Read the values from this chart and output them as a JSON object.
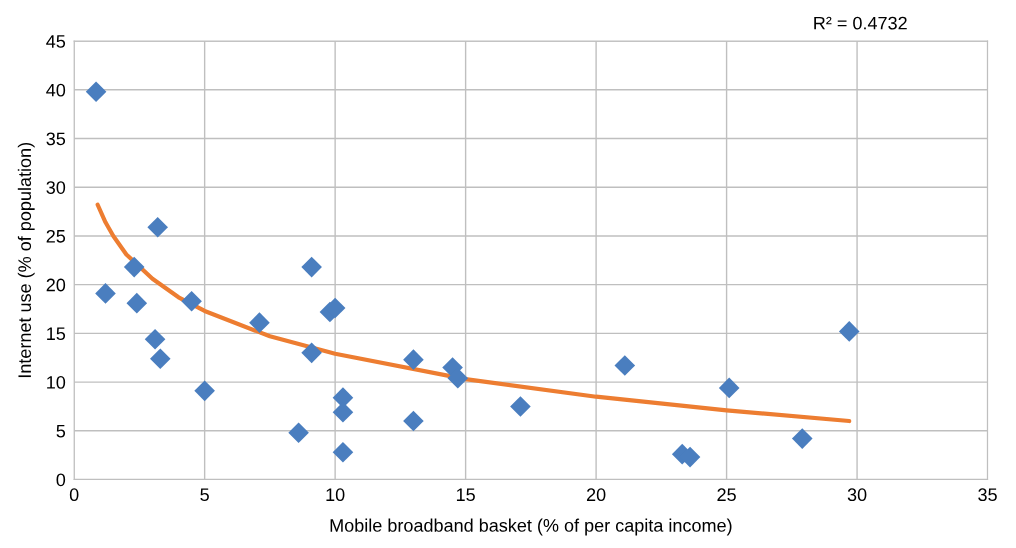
{
  "chart_data": {
    "type": "scatter",
    "xlabel": "Mobile broadband basket (% of per capita income)",
    "ylabel": "Internet use (% of population)",
    "annotations": [
      "R² = 0.4732"
    ],
    "xlim": [
      0,
      35
    ],
    "xticks": [
      0,
      5,
      10,
      15,
      20,
      25,
      30,
      35
    ],
    "ylim": [
      0,
      45
    ],
    "yticks": [
      0,
      5,
      10,
      15,
      20,
      25,
      30,
      35,
      40,
      45
    ],
    "grid": true,
    "marker": "diamond",
    "series": [
      {
        "color": "#4a7ebf",
        "x": [
          0.84,
          1.2,
          2.3,
          2.4,
          3.2,
          3.1,
          3.3,
          4.5,
          5.0,
          7.1,
          8.6,
          9.1,
          9.1,
          9.8,
          10.0,
          10.3,
          10.3,
          10.3,
          13.0,
          13.0,
          14.5,
          14.7,
          17.1,
          21.1,
          25.1,
          27.9,
          23.3,
          23.6,
          29.7
        ],
        "values": [
          39.8,
          19.1,
          21.8,
          18.1,
          25.9,
          14.4,
          12.4,
          18.3,
          9.1,
          16.1,
          4.8,
          21.8,
          13.0,
          17.2,
          17.6,
          8.4,
          6.9,
          2.8,
          12.3,
          6.0,
          11.5,
          10.4,
          7.5,
          11.7,
          9.4,
          4.2,
          2.6,
          2.3,
          15.2
        ]
      },
      {
        "type": "line",
        "color": "#ed7d31",
        "marker": "none",
        "x": [
          0.9,
          1.2,
          1.5,
          2,
          3,
          4,
          5,
          7.5,
          10,
          15,
          20,
          25,
          29.7
        ],
        "values": [
          28.2,
          26.4,
          25.0,
          23.1,
          20.6,
          18.7,
          17.3,
          14.7,
          12.9,
          10.3,
          8.5,
          7.1,
          6.0
        ]
      }
    ]
  }
}
